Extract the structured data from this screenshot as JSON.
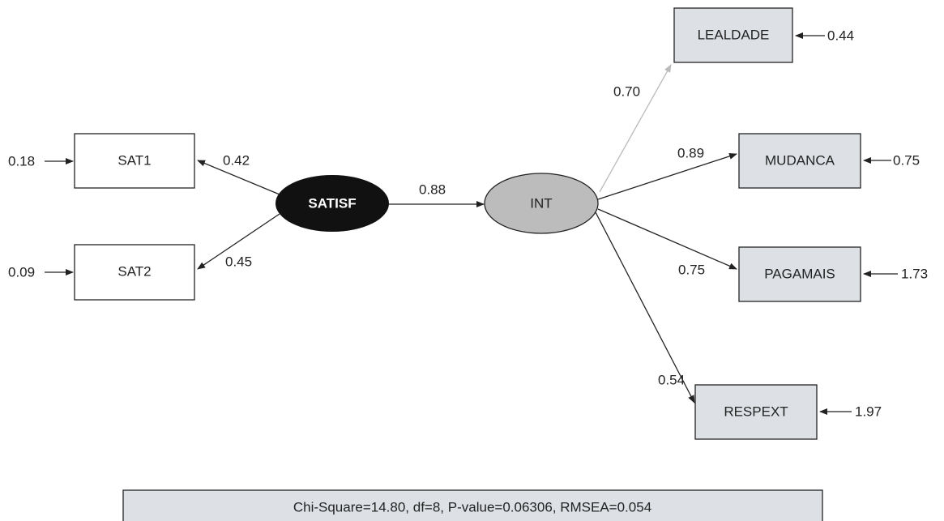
{
  "nodes": [
    {
      "label": "SAT1",
      "error": "0.18"
    },
    {
      "label": "SAT2",
      "error": "0.09"
    },
    {
      "label": "SATISF"
    },
    {
      "label": "INT"
    },
    {
      "label": "LEALDADE",
      "error": "0.44"
    },
    {
      "label": "MUDANCA",
      "error": "0.75"
    },
    {
      "label": "PAGAMAIS",
      "error": "1.73"
    },
    {
      "label": "RESPEXT",
      "error": "1.97"
    }
  ],
  "paths": [
    {
      "from": "SATISF",
      "to": "SAT1",
      "label": "0.42"
    },
    {
      "from": "SATISF",
      "to": "SAT2",
      "label": "0.45"
    },
    {
      "from": "SATISF",
      "to": "INT",
      "label": "0.88"
    },
    {
      "from": "INT",
      "to": "LEALDADE",
      "label": "0.70"
    },
    {
      "from": "INT",
      "to": "MUDANCA",
      "label": "0.89"
    },
    {
      "from": "INT",
      "to": "PAGAMAIS",
      "label": "0.75"
    },
    {
      "from": "INT",
      "to": "RESPEXT",
      "label": "0.54"
    }
  ],
  "fit": "Chi-Square=14.80, df=8, P-value=0.06306, RMSEA=0.054"
}
